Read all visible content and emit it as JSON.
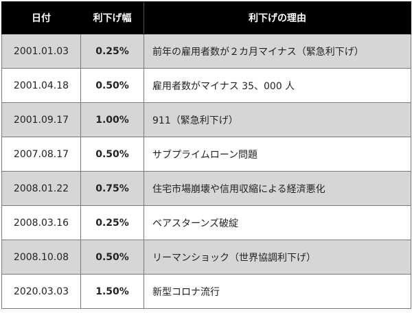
{
  "table": {
    "headers": {
      "date": "日付",
      "rate": "利下げ幅",
      "reason": "利下げの理由"
    },
    "rows": [
      {
        "date": "2001.01.03",
        "rate": "0.25%",
        "reason": "前年の雇用者数が２カ月マイナス（緊急利下げ）",
        "shaded": true
      },
      {
        "date": "2001.04.18",
        "rate": "0.50%",
        "reason": "雇用者数がマイナス 35、000 人",
        "shaded": false
      },
      {
        "date": "2001.09.17",
        "rate": "1.00%",
        "reason": "911（緊急利下げ）",
        "shaded": true
      },
      {
        "date": "2007.08.17",
        "rate": "0.50%",
        "reason": "サブプライムローン問題",
        "shaded": false
      },
      {
        "date": "2008.01.22",
        "rate": "0.75%",
        "reason": "住宅市場崩壊や信用収縮による経済悪化",
        "shaded": true
      },
      {
        "date": "2008.03.16",
        "rate": "0.25%",
        "reason": "ベアスターンズ破綻",
        "shaded": false
      },
      {
        "date": "2008.10.08",
        "rate": "0.50%",
        "reason": "リーマンショック（世界協調利下げ）",
        "shaded": true
      },
      {
        "date": "2020.03.03",
        "rate": "1.50%",
        "reason": "新型コロナ流行",
        "shaded": false
      }
    ]
  },
  "colors": {
    "header_bg": "#000000",
    "header_text": "#ffffff",
    "shaded_row": "#d6d6d6",
    "plain_row": "#ffffff"
  }
}
